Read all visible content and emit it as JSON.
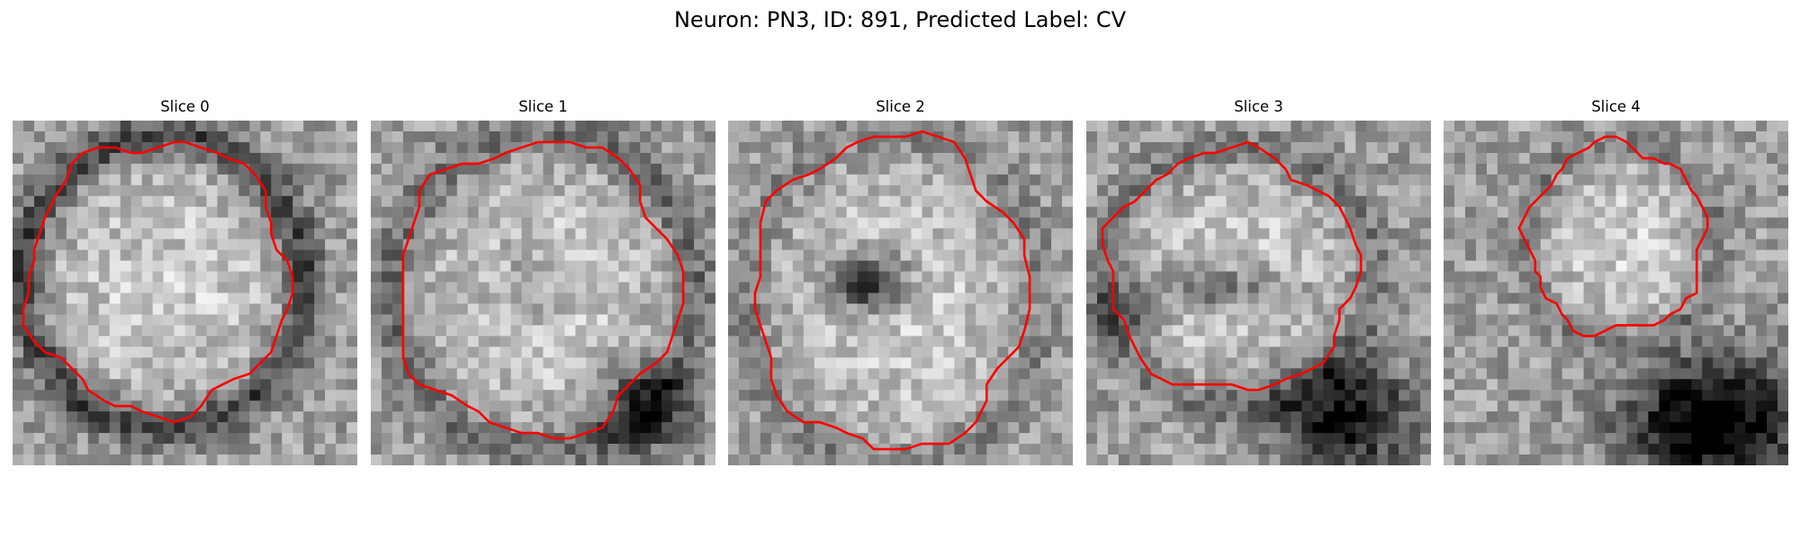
{
  "figure": {
    "title": "Neuron: PN3, ID: 891, Predicted Label: CV",
    "contour_color": "#ff0000",
    "colormap": "gray"
  },
  "panels": [
    {
      "title": "Slice 0"
    },
    {
      "title": "Slice 1"
    },
    {
      "title": "Slice 2"
    },
    {
      "title": "Slice 3"
    },
    {
      "title": "Slice 4"
    }
  ]
}
